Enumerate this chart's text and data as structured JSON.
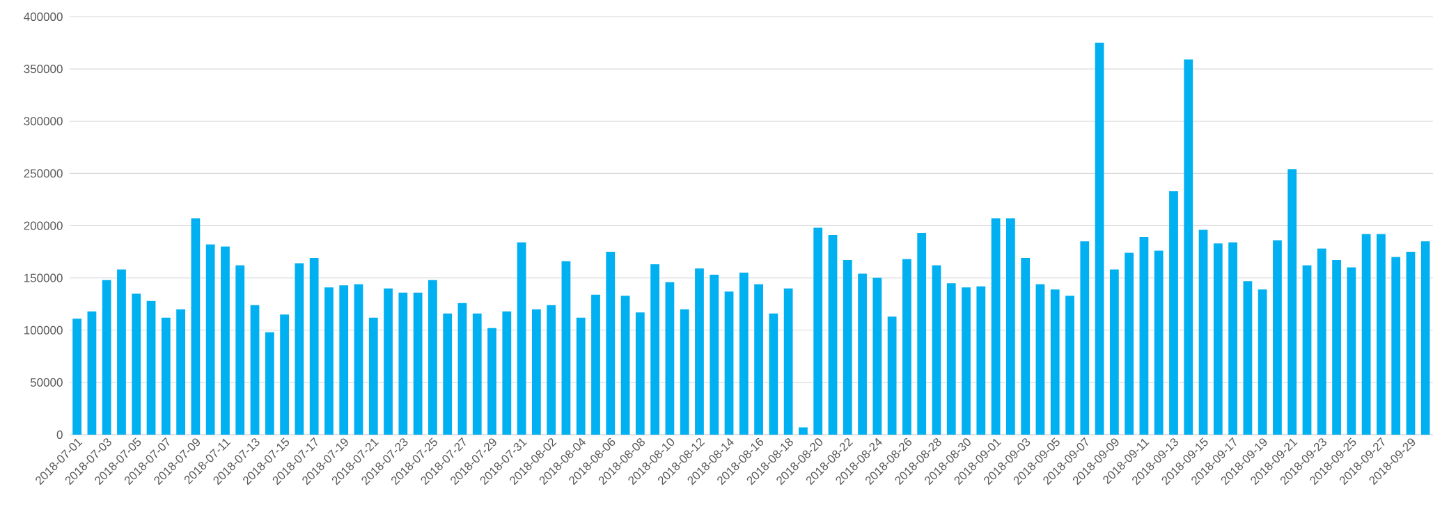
{
  "chart_data": {
    "type": "bar",
    "categories": [
      "2018-07-01",
      null,
      "2018-07-03",
      null,
      "2018-07-05",
      null,
      "2018-07-07",
      null,
      "2018-07-09",
      null,
      "2018-07-11",
      null,
      "2018-07-13",
      null,
      "2018-07-15",
      null,
      "2018-07-17",
      null,
      "2018-07-19",
      null,
      "2018-07-21",
      null,
      "2018-07-23",
      null,
      "2018-07-25",
      null,
      "2018-07-27",
      null,
      "2018-07-29",
      null,
      "2018-07-31",
      null,
      "2018-08-02",
      null,
      "2018-08-04",
      null,
      "2018-08-06",
      null,
      "2018-08-08",
      null,
      "2018-08-10",
      null,
      "2018-08-12",
      null,
      "2018-08-14",
      null,
      "2018-08-16",
      null,
      "2018-08-18",
      null,
      "2018-08-20",
      null,
      "2018-08-22",
      null,
      "2018-08-24",
      null,
      "2018-08-26",
      null,
      "2018-08-28",
      null,
      "2018-08-30",
      null,
      "2018-09-01",
      null,
      "2018-09-03",
      null,
      "2018-09-05",
      null,
      "2018-09-07",
      null,
      "2018-09-09",
      null,
      "2018-09-11",
      null,
      "2018-09-13",
      null,
      "2018-09-15",
      null,
      "2018-09-17",
      null,
      "2018-09-19",
      null,
      "2018-09-21",
      null,
      "2018-09-23",
      null,
      "2018-09-25",
      null,
      "2018-09-27",
      null,
      "2018-09-29",
      null
    ],
    "values": [
      111000,
      118000,
      148000,
      158000,
      135000,
      128000,
      112000,
      120000,
      207000,
      182000,
      180000,
      162000,
      124000,
      98000,
      115000,
      164000,
      169000,
      141000,
      143000,
      144000,
      112000,
      140000,
      136000,
      136000,
      148000,
      116000,
      126000,
      116000,
      102000,
      118000,
      184000,
      120000,
      124000,
      166000,
      112000,
      134000,
      175000,
      133000,
      117000,
      163000,
      146000,
      120000,
      159000,
      153000,
      137000,
      155000,
      144000,
      116000,
      140000,
      7000,
      198000,
      191000,
      167000,
      154000,
      150000,
      113000,
      168000,
      193000,
      162000,
      145000,
      141000,
      142000,
      207000,
      207000,
      169000,
      144000,
      139000,
      133000,
      185000,
      375000,
      158000,
      174000,
      189000,
      176000,
      233000,
      359000,
      196000,
      183000,
      184000,
      147000,
      139000,
      186000,
      254000,
      162000,
      178000,
      167000,
      160000,
      192000,
      192000,
      170000,
      175000,
      185000
    ],
    "color": "#00b0f0",
    "ylim": [
      0,
      400000
    ],
    "yticks": [
      0,
      50000,
      100000,
      150000,
      200000,
      250000,
      300000,
      350000,
      400000
    ],
    "grid": "y"
  }
}
